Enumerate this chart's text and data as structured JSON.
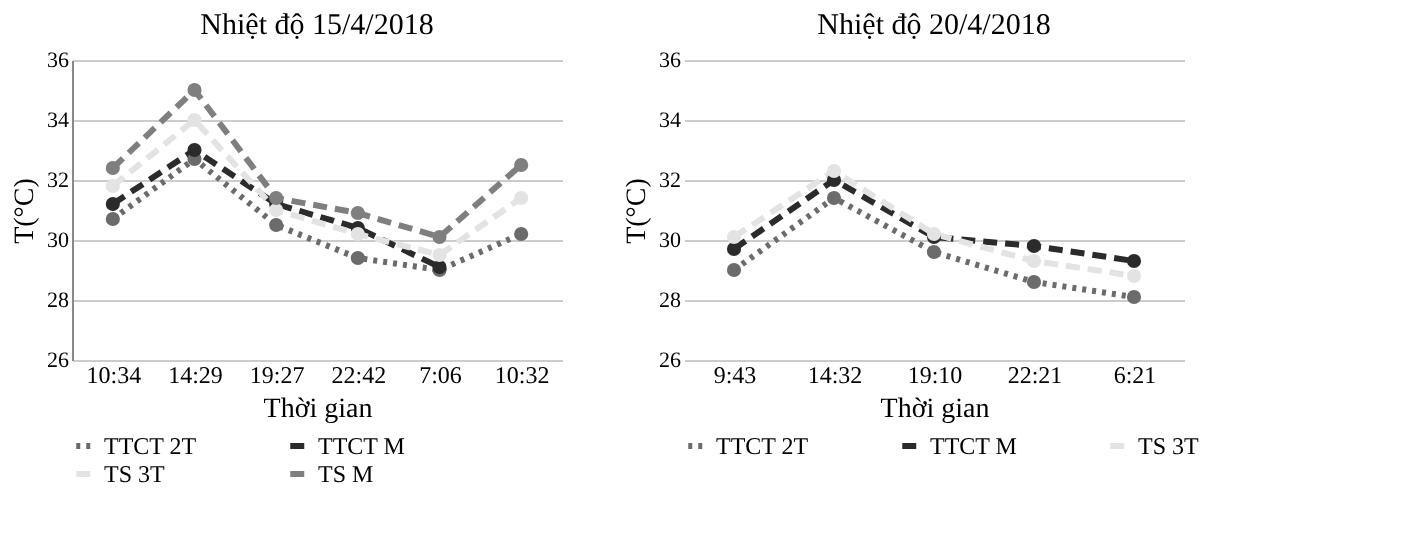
{
  "chart_data": [
    {
      "type": "line",
      "title": "Nhiệt độ 15/4/2018",
      "xlabel": "Thời gian",
      "ylabel": "T(°C)",
      "categories": [
        "10:34",
        "14:29",
        "19:27",
        "22:42",
        "7:06",
        "10:32"
      ],
      "ylim": [
        26,
        36
      ],
      "yticks": [
        26,
        28,
        30,
        32,
        34,
        36
      ],
      "grid": "y",
      "legend": "bottom",
      "marker": "circle",
      "series": [
        {
          "name": "TTCT 2T",
          "color": "#6b6b6b",
          "line_style": "dotted",
          "values": [
            30.7,
            32.7,
            30.5,
            29.4,
            29.0,
            30.2
          ]
        },
        {
          "name": "TTCT M",
          "color": "#2b2b2b",
          "line_style": "dashed",
          "values": [
            31.2,
            33.0,
            31.2,
            30.4,
            29.1,
            null
          ]
        },
        {
          "name": "TS 3T",
          "color": "#e3e3e3",
          "line_style": "dashed",
          "values": [
            31.8,
            34.0,
            31.0,
            30.2,
            29.5,
            31.4
          ]
        },
        {
          "name": "TS M",
          "color": "#7f7f7f",
          "line_style": "dashed",
          "values": [
            32.4,
            35.0,
            31.4,
            30.9,
            30.1,
            32.5
          ]
        }
      ]
    },
    {
      "type": "line",
      "title": "Nhiệt độ 20/4/2018",
      "xlabel": "Thời gian",
      "ylabel": "T(°C)",
      "categories": [
        "9:43",
        "14:32",
        "19:10",
        "22:21",
        "6:21"
      ],
      "ylim": [
        26,
        36
      ],
      "yticks": [
        26,
        28,
        30,
        32,
        34,
        36
      ],
      "grid": "y",
      "legend": "bottom",
      "marker": "circle",
      "series": [
        {
          "name": "TTCT 2T",
          "color": "#6b6b6b",
          "line_style": "dotted",
          "values": [
            29.0,
            31.4,
            29.6,
            28.6,
            28.1
          ]
        },
        {
          "name": "TTCT M",
          "color": "#2b2b2b",
          "line_style": "dashed",
          "values": [
            29.7,
            32.0,
            30.1,
            29.8,
            29.3
          ]
        },
        {
          "name": "TS 3T",
          "color": "#e3e3e3",
          "line_style": "dashed",
          "values": [
            30.1,
            32.3,
            30.2,
            29.3,
            28.8
          ]
        }
      ]
    }
  ]
}
